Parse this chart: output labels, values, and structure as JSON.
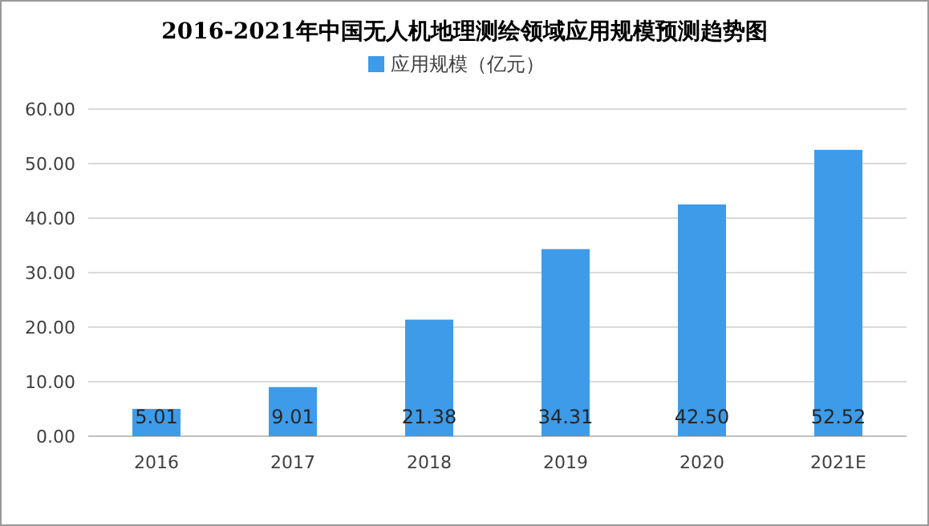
{
  "chart_data": {
    "type": "bar",
    "title": "2016-2021年中国无人机地理测绘领域应用规模预测趋势图",
    "categories": [
      "2016",
      "2017",
      "2018",
      "2019",
      "2020",
      "2021E"
    ],
    "series": [
      {
        "name": "应用规模（亿元）",
        "color": "#3d9be9",
        "values": [
          5.01,
          9.01,
          21.38,
          34.31,
          42.5,
          52.52
        ]
      }
    ],
    "value_labels": [
      "5.01",
      "9.01",
      "21.38",
      "34.31",
      "42.50",
      "52.52"
    ],
    "ylim": [
      0,
      60
    ],
    "yticks": [
      {
        "value": 0,
        "label": "0.00"
      },
      {
        "value": 10,
        "label": "10.00"
      },
      {
        "value": 20,
        "label": "20.00"
      },
      {
        "value": 30,
        "label": "30.00"
      },
      {
        "value": 40,
        "label": "40.00"
      },
      {
        "value": 50,
        "label": "50.00"
      },
      {
        "value": 60,
        "label": "60.00"
      }
    ],
    "grid": "y",
    "legend": "top"
  }
}
